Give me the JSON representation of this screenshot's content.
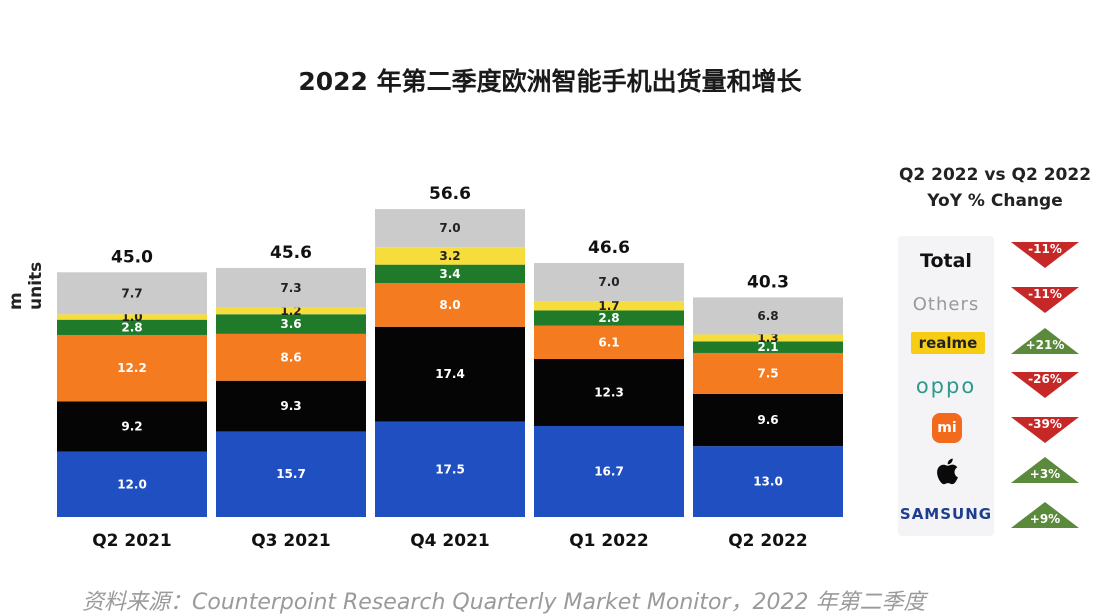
{
  "title": "2022 年第二季度欧洲智能手机出货量和增长",
  "source": "资料来源：Counterpoint Research Quarterly Market Monitor，2022 年第二季度",
  "colors": {
    "samsung": "#1f4fc0",
    "apple": "#050505",
    "xiaomi": "#f47b20",
    "oppo": "#1f7a2a",
    "realme": "#f7dd3c",
    "others": "#cbcbcb",
    "yoy_down": "#c62828",
    "yoy_up": "#5c8a3c"
  },
  "chart_data": {
    "type": "bar",
    "stacked": true,
    "title": "2022 年第二季度欧洲智能手机出货量和增长",
    "ylabel": "m units",
    "xlabel": "",
    "ylim": [
      0,
      60
    ],
    "categories": [
      "Q2 2021",
      "Q3 2021",
      "Q4 2021",
      "Q1 2022",
      "Q2 2022"
    ],
    "totals": [
      "45.0",
      "45.6",
      "56.6",
      "46.6",
      "40.3"
    ],
    "series": [
      {
        "name": "Samsung",
        "color_key": "samsung",
        "values": [
          12.0,
          15.7,
          17.5,
          16.7,
          13.0
        ],
        "labels": [
          "12.0",
          "15.7",
          "17.5",
          "16.7",
          "13.0"
        ]
      },
      {
        "name": "Apple",
        "color_key": "apple",
        "values": [
          9.2,
          9.3,
          17.4,
          12.3,
          9.6
        ],
        "labels": [
          "9.2",
          "9.3",
          "17.4",
          "12.3",
          "9.6"
        ]
      },
      {
        "name": "Xiaomi",
        "color_key": "xiaomi",
        "values": [
          12.2,
          8.6,
          8.0,
          6.1,
          7.5
        ],
        "labels": [
          "12.2",
          "8.6",
          "8.0",
          "6.1",
          "7.5"
        ]
      },
      {
        "name": "OPPO",
        "color_key": "oppo",
        "values": [
          2.8,
          3.6,
          3.4,
          2.8,
          2.1
        ],
        "labels": [
          "2.8",
          "3.6",
          "3.4",
          "2.8",
          "2.1"
        ]
      },
      {
        "name": "realme",
        "color_key": "realme",
        "values": [
          1.0,
          1.2,
          3.2,
          1.7,
          1.3
        ],
        "labels": [
          "1.0",
          "1.2",
          "3.2",
          "1.7",
          "1.3"
        ]
      },
      {
        "name": "Others",
        "color_key": "others",
        "values": [
          7.7,
          7.3,
          7.0,
          7.0,
          6.8
        ],
        "labels": [
          "7.7",
          "7.3",
          "7.0",
          "7.0",
          "6.8"
        ]
      }
    ]
  },
  "yoy": {
    "header_line1": "Q2 2022 vs Q2 2022",
    "header_line2": "YoY % Change",
    "brand_labels": {
      "total": "Total",
      "others": "Others",
      "realme": "realme",
      "oppo": "oppo",
      "mi": "mi",
      "samsung": "SAMSUNG"
    },
    "items": [
      {
        "brand": "Total",
        "change": "-11%",
        "direction": "down"
      },
      {
        "brand": "Others",
        "change": "-11%",
        "direction": "down"
      },
      {
        "brand": "realme",
        "change": "+21%",
        "direction": "up"
      },
      {
        "brand": "OPPO",
        "change": "-26%",
        "direction": "down"
      },
      {
        "brand": "Xiaomi",
        "change": "-39%",
        "direction": "down"
      },
      {
        "brand": "Apple",
        "change": "+3%",
        "direction": "up"
      },
      {
        "brand": "Samsung",
        "change": "+9%",
        "direction": "up"
      }
    ]
  }
}
